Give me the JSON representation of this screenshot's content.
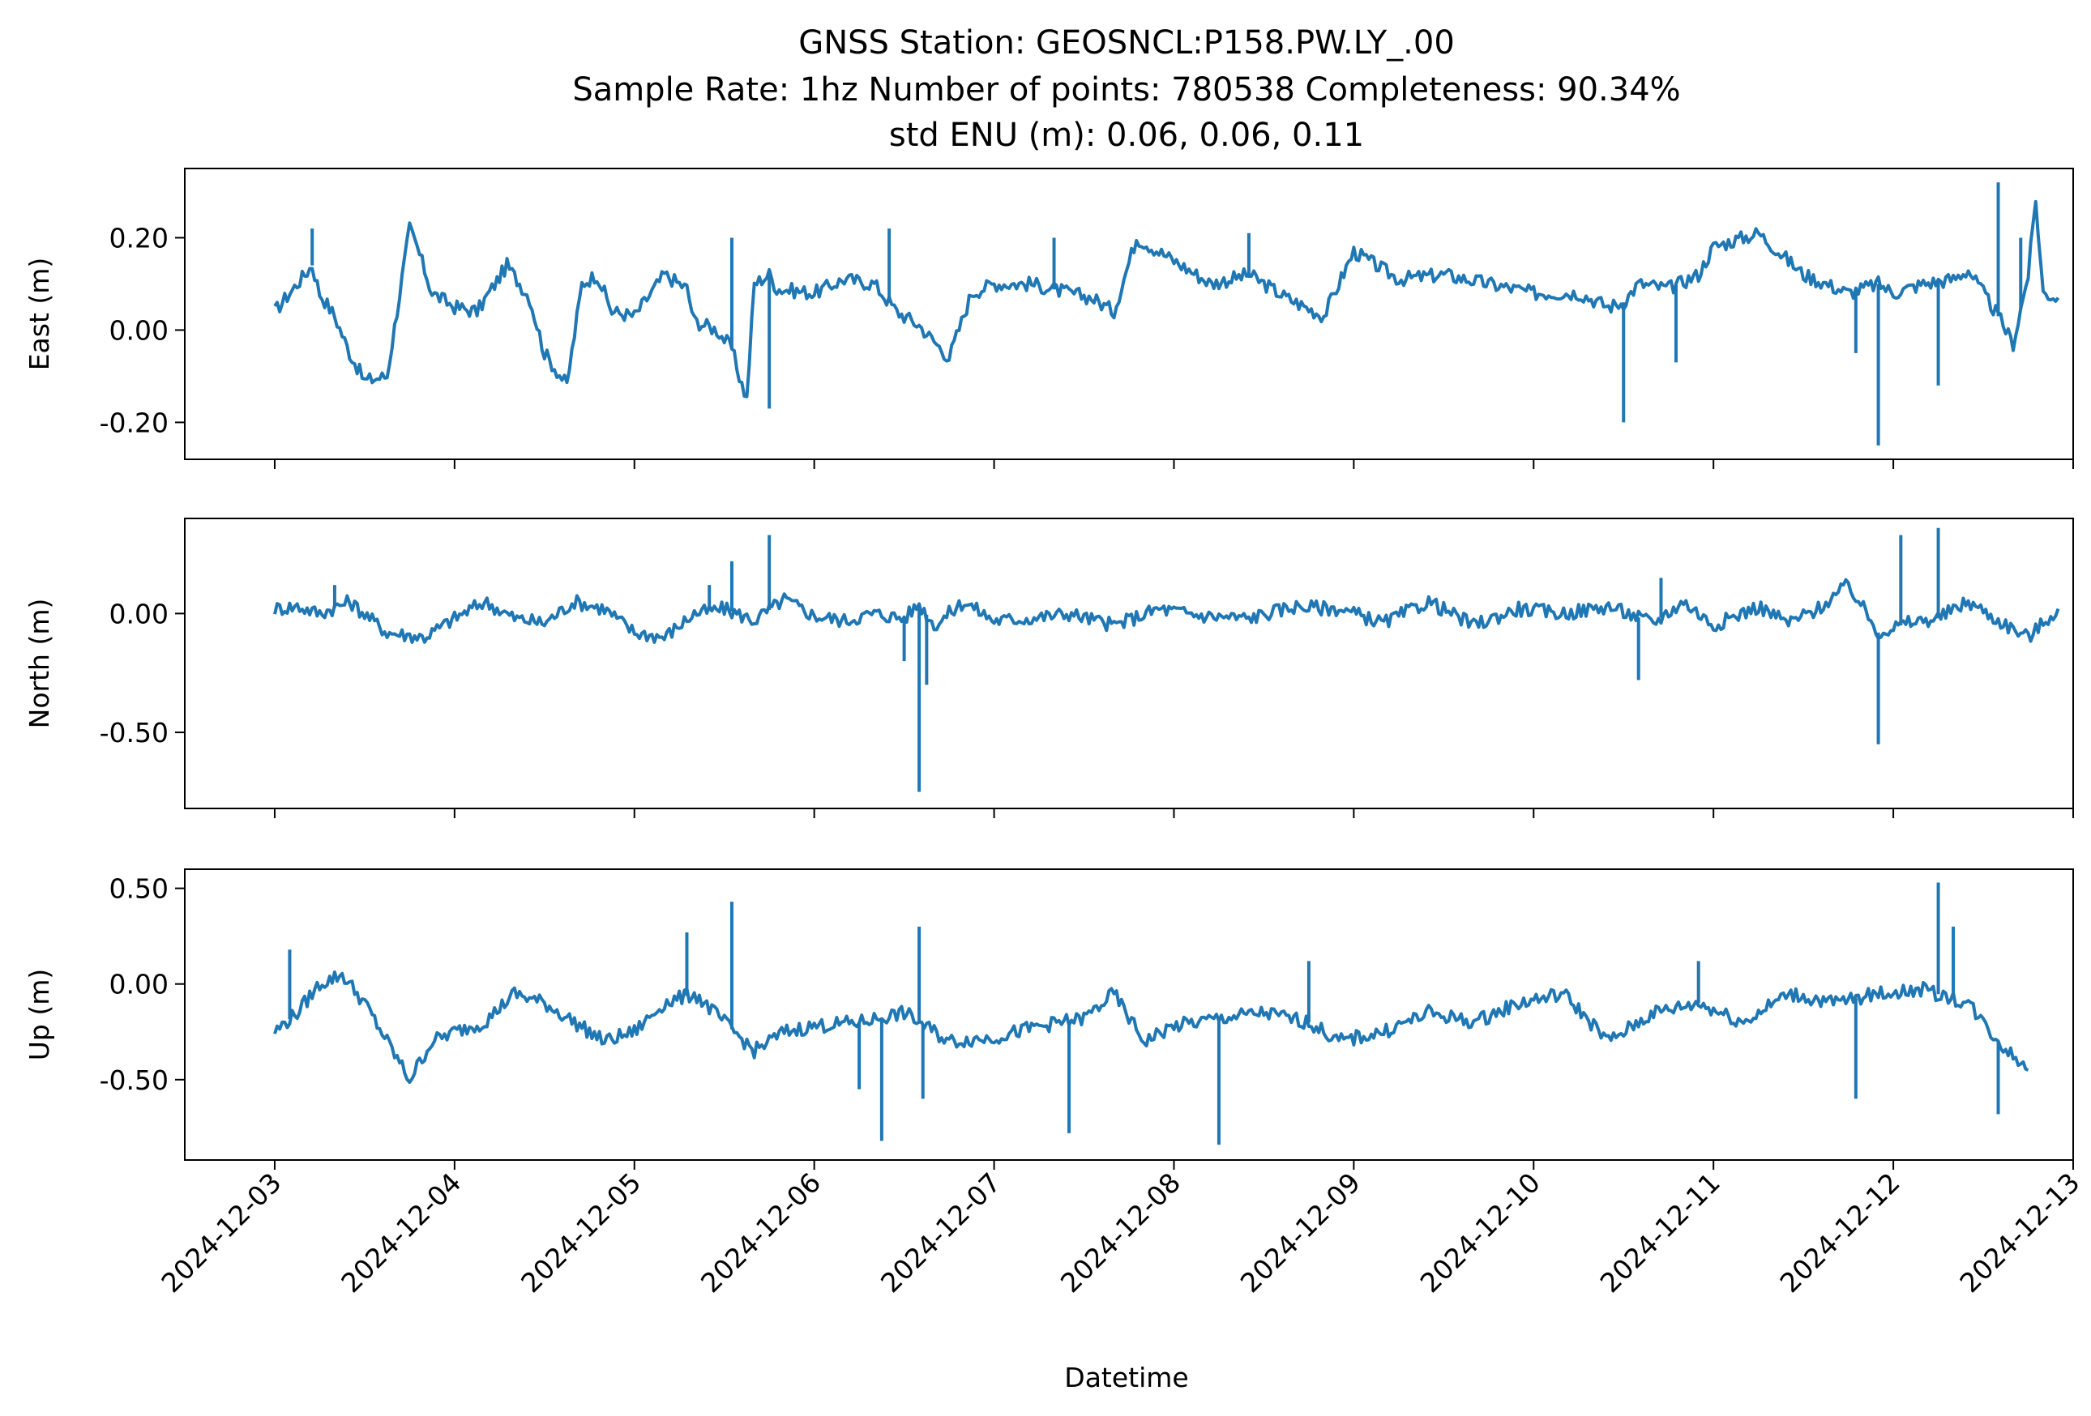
{
  "title": {
    "line1": "GNSS Station: GEOSNCL:P158.PW.LY_.00",
    "line2": "Sample Rate: 1hz   Number of points: 780538    Completeness:  90.34%",
    "line3": "std ENU (m):  0.06, 0.06, 0.11"
  },
  "chart_data": {
    "type": "line",
    "xlabel": "Datetime",
    "x_ticks": [
      "2024-12-03",
      "2024-12-04",
      "2024-12-05",
      "2024-12-06",
      "2024-12-07",
      "2024-12-08",
      "2024-12-09",
      "2024-12-10",
      "2024-12-11",
      "2024-12-12",
      "2024-12-13"
    ],
    "xlim": [
      "2024-12-02T12:00",
      "2024-12-13T00:00"
    ],
    "line_color": "#1f77b4",
    "subplots": [
      {
        "ylabel": "East (m)",
        "ylim": [
          -0.28,
          0.35
        ],
        "y_ticks": [
          -0.2,
          0.0,
          0.2
        ],
        "y_tick_labels": [
          "-0.20",
          "0.00",
          "0.20"
        ],
        "x": [
          "2024-12-03T00:00",
          "2024-12-03T03:00",
          "2024-12-03T05:00",
          "2024-12-03T06:00",
          "2024-12-03T08:00",
          "2024-12-03T10:00",
          "2024-12-03T12:00",
          "2024-12-03T15:00",
          "2024-12-03T18:00",
          "2024-12-03T19:00",
          "2024-12-03T21:00",
          "2024-12-04T00:00",
          "2024-12-04T03:00",
          "2024-12-04T07:00",
          "2024-12-04T10:00",
          "2024-12-04T12:00",
          "2024-12-04T15:00",
          "2024-12-04T17:00",
          "2024-12-04T19:00",
          "2024-12-04T21:00",
          "2024-12-05T00:00",
          "2024-12-05T04:00",
          "2024-12-05T07:00",
          "2024-12-05T08:00",
          "2024-12-05T11:00",
          "2024-12-05T13:00",
          "2024-12-05T14:00",
          "2024-12-05T15:00",
          "2024-12-05T16:00",
          "2024-12-05T18:00",
          "2024-12-05T19:00",
          "2024-12-06T00:00",
          "2024-12-06T04:00",
          "2024-12-06T08:00",
          "2024-12-06T11:00",
          "2024-12-06T14:00",
          "2024-12-06T18:00",
          "2024-12-06T21:00",
          "2024-12-07T00:00",
          "2024-12-07T05:00",
          "2024-12-07T10:00",
          "2024-12-07T13:00",
          "2024-12-07T16:00",
          "2024-12-07T19:00",
          "2024-12-08T00:00",
          "2024-12-08T05:00",
          "2024-12-08T10:00",
          "2024-12-08T15:00",
          "2024-12-08T20:00",
          "2024-12-09T00:00",
          "2024-12-09T06:00",
          "2024-12-09T12:00",
          "2024-12-09T18:00",
          "2024-12-10T00:00",
          "2024-12-10T06:00",
          "2024-12-10T10:00",
          "2024-12-10T12:00",
          "2024-12-10T14:00",
          "2024-12-10T18:00",
          "2024-12-10T22:00",
          "2024-12-11T00:00",
          "2024-12-11T06:00",
          "2024-12-11T12:00",
          "2024-12-11T18:00",
          "2024-12-11T22:00",
          "2024-12-12T00:00",
          "2024-12-12T04:00",
          "2024-12-12T08:00",
          "2024-12-12T10:00",
          "2024-12-12T12:00",
          "2024-12-12T14:00",
          "2024-12-12T15:00",
          "2024-12-12T16:00",
          "2024-12-12T18:00",
          "2024-12-12T19:00",
          "2024-12-12T20:00",
          "2024-12-12T22:00"
        ],
        "y": [
          0.04,
          0.1,
          0.14,
          0.08,
          0.03,
          -0.05,
          -0.11,
          -0.1,
          0.22,
          0.18,
          0.08,
          0.05,
          0.04,
          0.14,
          0.07,
          -0.05,
          -0.12,
          0.1,
          0.12,
          0.04,
          0.03,
          0.12,
          0.09,
          0.02,
          0.0,
          -0.04,
          -0.1,
          -0.15,
          0.1,
          0.12,
          0.09,
          0.08,
          0.11,
          0.1,
          0.04,
          0.01,
          -0.06,
          0.08,
          0.1,
          0.1,
          0.08,
          0.07,
          0.04,
          0.2,
          0.15,
          0.1,
          0.12,
          0.07,
          0.03,
          0.17,
          0.11,
          0.12,
          0.1,
          0.08,
          0.08,
          0.05,
          0.06,
          0.1,
          0.09,
          0.12,
          0.18,
          0.21,
          0.12,
          0.08,
          0.1,
          0.08,
          0.1,
          0.11,
          0.13,
          0.08,
          0.03,
          0.0,
          -0.03,
          0.12,
          0.28,
          0.08,
          0.07
        ],
        "spikes": [
          {
            "x": "2024-12-03T05:00",
            "y": 0.22
          },
          {
            "x": "2024-12-05T13:00",
            "y": 0.2
          },
          {
            "x": "2024-12-05T18:00",
            "y": -0.17
          },
          {
            "x": "2024-12-06T10:00",
            "y": 0.22
          },
          {
            "x": "2024-12-07T08:00",
            "y": 0.2
          },
          {
            "x": "2024-12-08T10:00",
            "y": 0.21
          },
          {
            "x": "2024-12-10T12:00",
            "y": -0.2
          },
          {
            "x": "2024-12-10T19:00",
            "y": -0.07
          },
          {
            "x": "2024-12-11T19:00",
            "y": -0.05
          },
          {
            "x": "2024-12-11T22:00",
            "y": -0.25
          },
          {
            "x": "2024-12-12T06:00",
            "y": -0.12
          },
          {
            "x": "2024-12-12T14:00",
            "y": 0.32
          },
          {
            "x": "2024-12-12T17:00",
            "y": 0.2
          }
        ]
      },
      {
        "ylabel": "North (m)",
        "ylim": [
          -0.82,
          0.4
        ],
        "y_ticks": [
          -0.5,
          0.0
        ],
        "y_tick_labels": [
          "-0.50",
          "0.00"
        ],
        "x": [
          "2024-12-03T00:00",
          "2024-12-03T03:00",
          "2024-12-03T06:00",
          "2024-12-03T10:00",
          "2024-12-03T15:00",
          "2024-12-03T20:00",
          "2024-12-04T00:00",
          "2024-12-04T04:00",
          "2024-12-04T08:00",
          "2024-12-04T12:00",
          "2024-12-04T16:00",
          "2024-12-04T20:00",
          "2024-12-05T00:00",
          "2024-12-05T04:00",
          "2024-12-05T08:00",
          "2024-12-05T12:00",
          "2024-12-05T16:00",
          "2024-12-05T20:00",
          "2024-12-06T00:00",
          "2024-12-06T04:00",
          "2024-12-06T08:00",
          "2024-12-06T12:00",
          "2024-12-06T14:00",
          "2024-12-06T16:00",
          "2024-12-06T20:00",
          "2024-12-07T00:00",
          "2024-12-07T05:00",
          "2024-12-07T10:00",
          "2024-12-07T16:00",
          "2024-12-07T22:00",
          "2024-12-08T04:00",
          "2024-12-08T10:00",
          "2024-12-08T16:00",
          "2024-12-08T22:00",
          "2024-12-09T04:00",
          "2024-12-09T10:00",
          "2024-12-09T16:00",
          "2024-12-09T22:00",
          "2024-12-10T04:00",
          "2024-12-10T10:00",
          "2024-12-10T16:00",
          "2024-12-10T20:00",
          "2024-12-11T00:00",
          "2024-12-11T06:00",
          "2024-12-11T10:00",
          "2024-12-11T14:00",
          "2024-12-11T18:00",
          "2024-12-11T22:00",
          "2024-12-12T02:00",
          "2024-12-12T06:00",
          "2024-12-12T10:00",
          "2024-12-12T14:00",
          "2024-12-12T18:00",
          "2024-12-12T22:00"
        ],
        "y": [
          0.02,
          0.03,
          0.0,
          0.05,
          -0.08,
          -0.1,
          -0.02,
          0.05,
          -0.02,
          -0.04,
          0.05,
          0.02,
          -0.08,
          -0.1,
          0.0,
          0.02,
          -0.03,
          0.06,
          -0.01,
          -0.03,
          0.0,
          -0.02,
          0.04,
          -0.05,
          0.05,
          -0.03,
          -0.02,
          0.0,
          -0.05,
          0.02,
          -0.01,
          -0.02,
          0.03,
          0.02,
          -0.04,
          0.05,
          -0.05,
          0.02,
          0.0,
          0.03,
          -0.04,
          0.05,
          -0.05,
          0.03,
          -0.04,
          0.02,
          0.12,
          -0.08,
          -0.04,
          -0.02,
          0.05,
          -0.03,
          -0.1,
          0.02
        ],
        "spikes": [
          {
            "x": "2024-12-03T08:00",
            "y": 0.12
          },
          {
            "x": "2024-12-05T10:00",
            "y": 0.12
          },
          {
            "x": "2024-12-05T13:00",
            "y": 0.22
          },
          {
            "x": "2024-12-05T18:00",
            "y": 0.33
          },
          {
            "x": "2024-12-06T12:00",
            "y": -0.2
          },
          {
            "x": "2024-12-06T14:00",
            "y": -0.75
          },
          {
            "x": "2024-12-06T15:00",
            "y": -0.3
          },
          {
            "x": "2024-12-10T14:00",
            "y": -0.28
          },
          {
            "x": "2024-12-10T17:00",
            "y": 0.15
          },
          {
            "x": "2024-12-11T22:00",
            "y": -0.55
          },
          {
            "x": "2024-12-12T01:00",
            "y": 0.33
          },
          {
            "x": "2024-12-12T06:00",
            "y": 0.36
          }
        ]
      },
      {
        "ylabel": "Up (m)",
        "ylim": [
          -0.92,
          0.6
        ],
        "y_ticks": [
          -0.5,
          0.0,
          0.5
        ],
        "y_tick_labels": [
          "-0.50",
          "0.00",
          "0.50"
        ],
        "x": [
          "2024-12-03T00:00",
          "2024-12-03T03:00",
          "2024-12-03T06:00",
          "2024-12-03T09:00",
          "2024-12-03T12:00",
          "2024-12-03T15:00",
          "2024-12-03T18:00",
          "2024-12-03T21:00",
          "2024-12-04T00:00",
          "2024-12-04T04:00",
          "2024-12-04T08:00",
          "2024-12-04T12:00",
          "2024-12-04T16:00",
          "2024-12-04T20:00",
          "2024-12-05T00:00",
          "2024-12-05T04:00",
          "2024-12-05T08:00",
          "2024-12-05T12:00",
          "2024-12-05T16:00",
          "2024-12-05T20:00",
          "2024-12-06T00:00",
          "2024-12-06T06:00",
          "2024-12-06T12:00",
          "2024-12-06T18:00",
          "2024-12-07T00:00",
          "2024-12-07T06:00",
          "2024-12-07T12:00",
          "2024-12-07T16:00",
          "2024-12-07T20:00",
          "2024-12-08T00:00",
          "2024-12-08T06:00",
          "2024-12-08T12:00",
          "2024-12-08T18:00",
          "2024-12-08T22:00",
          "2024-12-09T04:00",
          "2024-12-09T10:00",
          "2024-12-09T16:00",
          "2024-12-09T22:00",
          "2024-12-10T04:00",
          "2024-12-10T10:00",
          "2024-12-10T16:00",
          "2024-12-10T22:00",
          "2024-12-11T04:00",
          "2024-12-11T10:00",
          "2024-12-11T16:00",
          "2024-12-11T22:00",
          "2024-12-12T04:00",
          "2024-12-12T10:00",
          "2024-12-12T14:00",
          "2024-12-12T18:00"
        ],
        "y": [
          -0.25,
          -0.15,
          0.0,
          0.05,
          -0.1,
          -0.3,
          -0.5,
          -0.3,
          -0.25,
          -0.2,
          -0.05,
          -0.1,
          -0.2,
          -0.3,
          -0.25,
          -0.1,
          -0.05,
          -0.2,
          -0.35,
          -0.25,
          -0.22,
          -0.2,
          -0.15,
          -0.3,
          -0.28,
          -0.22,
          -0.18,
          -0.05,
          -0.3,
          -0.22,
          -0.18,
          -0.15,
          -0.2,
          -0.3,
          -0.25,
          -0.15,
          -0.2,
          -0.1,
          -0.05,
          -0.3,
          -0.15,
          -0.1,
          -0.2,
          -0.05,
          -0.1,
          -0.05,
          -0.03,
          -0.1,
          -0.3,
          -0.45
        ],
        "spikes": [
          {
            "x": "2024-12-03T02:00",
            "y": 0.18
          },
          {
            "x": "2024-12-05T07:00",
            "y": 0.27
          },
          {
            "x": "2024-12-05T13:00",
            "y": 0.43
          },
          {
            "x": "2024-12-06T06:00",
            "y": -0.55
          },
          {
            "x": "2024-12-06T09:00",
            "y": -0.82
          },
          {
            "x": "2024-12-06T14:00",
            "y": 0.3
          },
          {
            "x": "2024-12-06T14:30",
            "y": -0.6
          },
          {
            "x": "2024-12-07T10:00",
            "y": -0.78
          },
          {
            "x": "2024-12-08T06:00",
            "y": -0.84
          },
          {
            "x": "2024-12-08T18:00",
            "y": 0.12
          },
          {
            "x": "2024-12-10T22:00",
            "y": 0.12
          },
          {
            "x": "2024-12-11T19:00",
            "y": -0.6
          },
          {
            "x": "2024-12-12T06:00",
            "y": 0.53
          },
          {
            "x": "2024-12-12T08:00",
            "y": 0.3
          },
          {
            "x": "2024-12-12T14:00",
            "y": -0.68
          }
        ]
      }
    ]
  }
}
